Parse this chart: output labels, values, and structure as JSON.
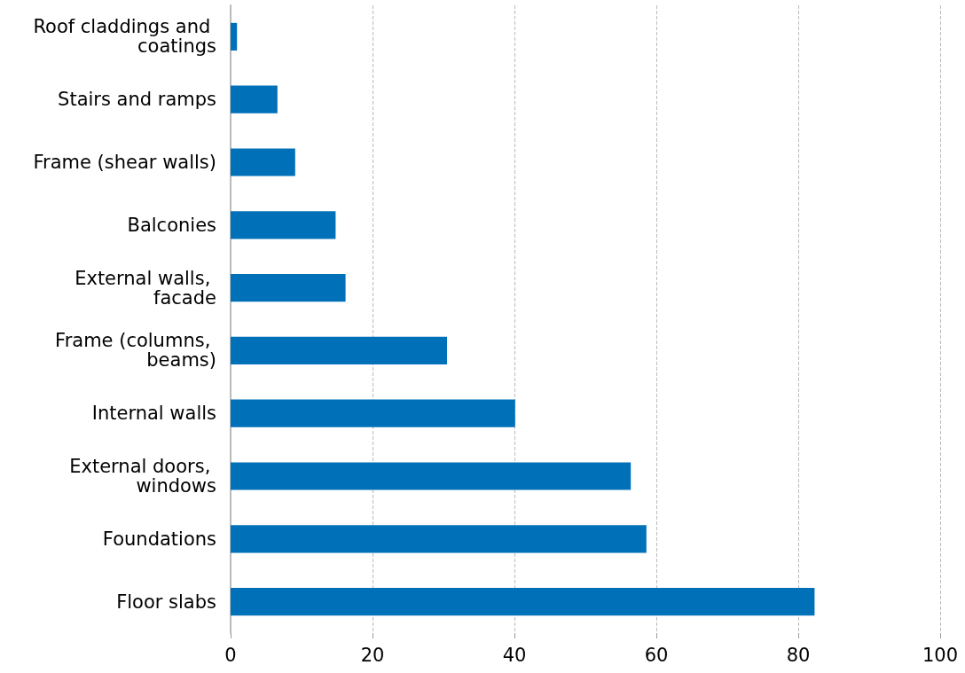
{
  "chart_data": {
    "type": "bar",
    "orientation": "horizontal",
    "categories": [
      "Roof claddings and coatings",
      "Stairs and ramps",
      "Frame (shear walls)",
      "Balconies",
      "External walls, facade",
      "Frame (columns, beams)",
      "Internal walls",
      "External doors, windows",
      "Foundations",
      "Floor slabs"
    ],
    "values": [
      0.9,
      6.6,
      9.1,
      14.8,
      16.2,
      30.5,
      40.1,
      56.4,
      58.6,
      82.3
    ],
    "color": "#0070b8",
    "xlim": [
      0,
      100
    ],
    "xticks": [
      0,
      20,
      40,
      60,
      80,
      100
    ],
    "grid": "x"
  }
}
